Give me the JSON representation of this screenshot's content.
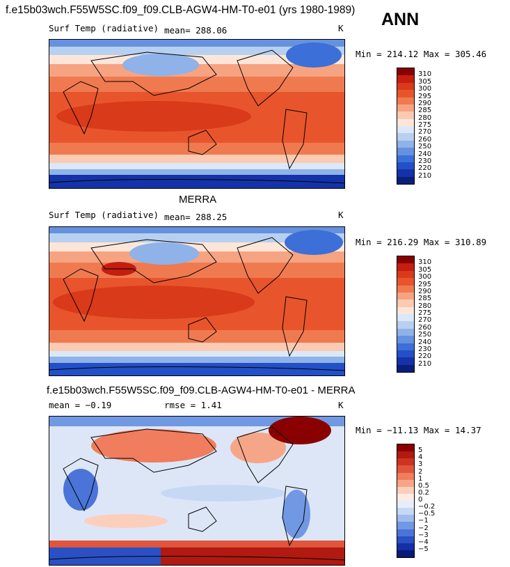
{
  "title": "f.e15b03wch.F55W5SC.f09_f09.CLB-AGW4-HM-T0-e01 (yrs 1980-1989)",
  "season": "ANN",
  "panels": [
    {
      "id": "model",
      "heading": "",
      "variable": "Surf Temp (radiative)",
      "mean_text": "mean= 288.06",
      "rmse_text": "",
      "units": "K",
      "minmax": "Min = 214.12 Max = 305.46",
      "colorbar": {
        "levels": [
          "310",
          "305",
          "300",
          "295",
          "290",
          "285",
          "280",
          "275",
          "270",
          "260",
          "250",
          "240",
          "230",
          "220",
          "210"
        ],
        "colors": [
          "#8a0000",
          "#c41e10",
          "#d93a1a",
          "#e8552c",
          "#f07a50",
          "#f6a382",
          "#fbcab2",
          "#fde6d9",
          "#dce8f7",
          "#b8d0f0",
          "#8fb2e8",
          "#6592e0",
          "#3c6fd8",
          "#2350c8",
          "#1433a8",
          "#0a1f7a"
        ]
      }
    },
    {
      "id": "merra",
      "heading": "MERRA",
      "variable": "Surf Temp (radiative)",
      "mean_text": "mean= 288.25",
      "rmse_text": "",
      "units": "K",
      "minmax": "Min = 216.29 Max = 310.89",
      "colorbar": {
        "levels": [
          "310",
          "305",
          "300",
          "295",
          "290",
          "285",
          "280",
          "275",
          "270",
          "260",
          "250",
          "240",
          "230",
          "220",
          "210"
        ],
        "colors": [
          "#8a0000",
          "#c41e10",
          "#d93a1a",
          "#e8552c",
          "#f07a50",
          "#f6a382",
          "#fbcab2",
          "#fde6d9",
          "#dce8f7",
          "#b8d0f0",
          "#8fb2e8",
          "#6592e0",
          "#3c6fd8",
          "#2350c8",
          "#1433a8",
          "#0a1f7a"
        ]
      }
    },
    {
      "id": "diff",
      "heading": "f.e15b03wch.F55W5SC.f09_f09.CLB-AGW4-HM-T0-e01 - MERRA",
      "variable": "",
      "mean_text": "mean = −0.19",
      "rmse_text": "rmse =   1.41",
      "units": "K",
      "minmax": "Min = −11.13 Max =  14.37",
      "colorbar": {
        "levels": [
          "5",
          "4",
          "3",
          "2",
          "1",
          "0.5",
          "0.2",
          "0",
          "−0.2",
          "−0.5",
          "−1",
          "−2",
          "−3",
          "−4",
          "−5"
        ],
        "colors": [
          "#8a0000",
          "#b01a10",
          "#cc3322",
          "#e0553c",
          "#ef7d5e",
          "#f6a688",
          "#fbcfbc",
          "#fdece4",
          "#e6eefa",
          "#c6d8f4",
          "#9fbcec",
          "#7198e2",
          "#4a74d8",
          "#2a50c4",
          "#152fa4",
          "#0a1a78"
        ]
      }
    }
  ]
}
